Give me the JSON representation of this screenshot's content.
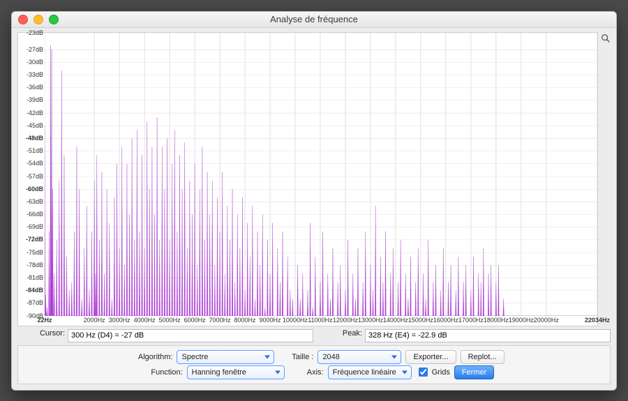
{
  "window": {
    "title": "Analyse de fréquence",
    "traffic_colors": {
      "close": "#ff5f57",
      "min": "#ffbd2e",
      "max": "#28c940"
    }
  },
  "chart": {
    "type": "area",
    "background_color": "#ffffff",
    "grid_color": "#d8d8d8",
    "series_fill": "#b346d8",
    "series_stroke": "#a030c8",
    "y": {
      "unit": "dB",
      "min": -90,
      "max": -23,
      "step": 3,
      "bold_ticks": [
        -24,
        -48,
        -60,
        -72,
        -84
      ],
      "ticks": [
        -23,
        -27,
        -30,
        -33,
        -36,
        -39,
        -42,
        -45,
        -48,
        -51,
        -54,
        -57,
        -60,
        -63,
        -66,
        -69,
        -72,
        -75,
        -78,
        -81,
        -84,
        -87,
        -90
      ]
    },
    "x": {
      "unit": "Hz",
      "min": 22,
      "max": 22034,
      "ticks": [
        22,
        2000,
        3000,
        4000,
        5000,
        6000,
        7000,
        8000,
        9000,
        10000,
        11000,
        12000,
        13000,
        14000,
        15000,
        16000,
        17000,
        18000,
        19000,
        20000,
        22034
      ],
      "bold_ticks": [
        22,
        22034
      ]
    },
    "points": [
      [
        22,
        -45
      ],
      [
        60,
        -85
      ],
      [
        120,
        -88
      ],
      [
        200,
        -70
      ],
      [
        260,
        -26
      ],
      [
        300,
        -27
      ],
      [
        340,
        -60
      ],
      [
        400,
        -80
      ],
      [
        500,
        -72
      ],
      [
        600,
        -58
      ],
      [
        700,
        -32
      ],
      [
        800,
        -52
      ],
      [
        900,
        -76
      ],
      [
        1000,
        -84
      ],
      [
        1100,
        -82
      ],
      [
        1200,
        -70
      ],
      [
        1300,
        -50
      ],
      [
        1400,
        -60
      ],
      [
        1500,
        -86
      ],
      [
        1600,
        -74
      ],
      [
        1700,
        -64
      ],
      [
        1800,
        -84
      ],
      [
        1900,
        -70
      ],
      [
        2000,
        -58
      ],
      [
        2050,
        -80
      ],
      [
        2100,
        -52
      ],
      [
        2200,
        -72
      ],
      [
        2300,
        -56
      ],
      [
        2400,
        -80
      ],
      [
        2500,
        -60
      ],
      [
        2600,
        -68
      ],
      [
        2700,
        -86
      ],
      [
        2800,
        -62
      ],
      [
        2900,
        -54
      ],
      [
        3000,
        -74
      ],
      [
        3100,
        -50
      ],
      [
        3200,
        -78
      ],
      [
        3300,
        -54
      ],
      [
        3400,
        -66
      ],
      [
        3500,
        -48
      ],
      [
        3600,
        -72
      ],
      [
        3700,
        -46
      ],
      [
        3800,
        -70
      ],
      [
        3900,
        -52
      ],
      [
        4000,
        -74
      ],
      [
        4100,
        -44
      ],
      [
        4200,
        -60
      ],
      [
        4300,
        -50
      ],
      [
        4400,
        -66
      ],
      [
        4500,
        -43
      ],
      [
        4600,
        -72
      ],
      [
        4700,
        -50
      ],
      [
        4800,
        -60
      ],
      [
        4900,
        -48
      ],
      [
        5000,
        -72
      ],
      [
        5100,
        -54
      ],
      [
        5200,
        -46
      ],
      [
        5300,
        -70
      ],
      [
        5400,
        -52
      ],
      [
        5500,
        -60
      ],
      [
        5600,
        -49
      ],
      [
        5700,
        -74
      ],
      [
        5800,
        -58
      ],
      [
        5900,
        -66
      ],
      [
        6000,
        -54
      ],
      [
        6100,
        -78
      ],
      [
        6200,
        -60
      ],
      [
        6300,
        -50
      ],
      [
        6400,
        -72
      ],
      [
        6500,
        -56
      ],
      [
        6600,
        -66
      ],
      [
        6700,
        -58
      ],
      [
        6800,
        -78
      ],
      [
        6900,
        -62
      ],
      [
        7000,
        -70
      ],
      [
        7100,
        -56
      ],
      [
        7200,
        -80
      ],
      [
        7300,
        -64
      ],
      [
        7400,
        -72
      ],
      [
        7500,
        -60
      ],
      [
        7600,
        -82
      ],
      [
        7700,
        -66
      ],
      [
        7800,
        -74
      ],
      [
        7900,
        -62
      ],
      [
        8000,
        -84
      ],
      [
        8100,
        -68
      ],
      [
        8200,
        -76
      ],
      [
        8300,
        -64
      ],
      [
        8400,
        -86
      ],
      [
        8500,
        -70
      ],
      [
        8600,
        -78
      ],
      [
        8700,
        -66
      ],
      [
        8800,
        -88
      ],
      [
        8900,
        -72
      ],
      [
        9000,
        -80
      ],
      [
        9100,
        -68
      ],
      [
        9200,
        -90
      ],
      [
        9300,
        -74
      ],
      [
        9400,
        -82
      ],
      [
        9500,
        -70
      ],
      [
        9600,
        -90
      ],
      [
        9700,
        -76
      ],
      [
        9800,
        -84
      ],
      [
        9900,
        -86
      ],
      [
        10000,
        -90
      ],
      [
        10100,
        -78
      ],
      [
        10200,
        -86
      ],
      [
        10300,
        -80
      ],
      [
        10400,
        -90
      ],
      [
        10500,
        -84
      ],
      [
        10600,
        -68
      ],
      [
        10700,
        -88
      ],
      [
        10800,
        -76
      ],
      [
        10900,
        -90
      ],
      [
        11000,
        -82
      ],
      [
        11100,
        -70
      ],
      [
        11200,
        -90
      ],
      [
        11300,
        -80
      ],
      [
        11400,
        -86
      ],
      [
        11500,
        -74
      ],
      [
        11600,
        -90
      ],
      [
        11700,
        -82
      ],
      [
        11800,
        -78
      ],
      [
        11900,
        -90
      ],
      [
        12000,
        -84
      ],
      [
        12100,
        -72
      ],
      [
        12200,
        -90
      ],
      [
        12300,
        -80
      ],
      [
        12400,
        -86
      ],
      [
        12500,
        -74
      ],
      [
        12600,
        -90
      ],
      [
        12700,
        -82
      ],
      [
        12800,
        -70
      ],
      [
        12900,
        -90
      ],
      [
        13000,
        -78
      ],
      [
        13100,
        -84
      ],
      [
        13200,
        -64
      ],
      [
        13300,
        -90
      ],
      [
        13400,
        -76
      ],
      [
        13500,
        -82
      ],
      [
        13600,
        -70
      ],
      [
        13700,
        -90
      ],
      [
        13800,
        -80
      ],
      [
        13900,
        -74
      ],
      [
        14000,
        -90
      ],
      [
        14100,
        -82
      ],
      [
        14200,
        -72
      ],
      [
        14300,
        -90
      ],
      [
        14400,
        -80
      ],
      [
        14500,
        -86
      ],
      [
        14600,
        -76
      ],
      [
        14700,
        -90
      ],
      [
        14800,
        -82
      ],
      [
        14900,
        -74
      ],
      [
        15000,
        -90
      ],
      [
        15100,
        -80
      ],
      [
        15200,
        -86
      ],
      [
        15300,
        -72
      ],
      [
        15400,
        -90
      ],
      [
        15500,
        -82
      ],
      [
        15600,
        -78
      ],
      [
        15700,
        -90
      ],
      [
        15800,
        -84
      ],
      [
        15900,
        -74
      ],
      [
        16000,
        -90
      ],
      [
        16100,
        -82
      ],
      [
        16200,
        -78
      ],
      [
        16300,
        -90
      ],
      [
        16400,
        -84
      ],
      [
        16500,
        -76
      ],
      [
        16600,
        -90
      ],
      [
        16700,
        -82
      ],
      [
        16800,
        -78
      ],
      [
        16900,
        -90
      ],
      [
        17000,
        -84
      ],
      [
        17100,
        -76
      ],
      [
        17200,
        -90
      ],
      [
        17300,
        -80
      ],
      [
        17400,
        -82
      ],
      [
        17500,
        -74
      ],
      [
        17600,
        -90
      ],
      [
        17700,
        -80
      ],
      [
        17800,
        -78
      ],
      [
        17900,
        -90
      ],
      [
        18000,
        -82
      ],
      [
        18100,
        -78
      ],
      [
        18200,
        -90
      ],
      [
        18300,
        -86
      ],
      [
        18400,
        -90
      ],
      [
        18500,
        -90
      ],
      [
        18600,
        -90
      ],
      [
        18700,
        -90
      ],
      [
        18800,
        -90
      ],
      [
        19000,
        -90
      ],
      [
        20000,
        -90
      ],
      [
        22034,
        -90
      ]
    ]
  },
  "info": {
    "cursor_label": "Cursor:",
    "cursor_value": "300 Hz (D4) = -27 dB",
    "peak_label": "Peak:",
    "peak_value": "328 Hz (E4) = -22.9 dB"
  },
  "controls": {
    "algorithm_label": "Algorithm:",
    "algorithm_value": "Spectre",
    "taille_label": "Taille :",
    "taille_value": "2048",
    "function_label": "Function:",
    "function_value": "Hanning fenêtre",
    "axis_label": "Axis:",
    "axis_value": "Fréquence linéaire",
    "grids_label": "Grids",
    "grids_checked": true,
    "export_label": "Exporter...",
    "replot_label": "Replot...",
    "close_label": "Fermer"
  }
}
